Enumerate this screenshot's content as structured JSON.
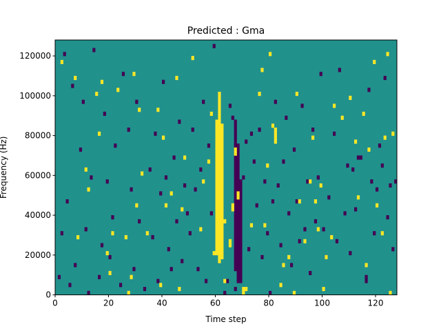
{
  "chart_data": {
    "type": "heatmap",
    "title": "Predicted : Gma",
    "xlabel": "Time step",
    "ylabel": "Frequency (Hz)",
    "xlim": [
      0,
      128
    ],
    "ylim": [
      0,
      128000
    ],
    "x_ticks": [
      0,
      20,
      40,
      60,
      80,
      100,
      120
    ],
    "y_ticks": [
      0,
      20000,
      40000,
      60000,
      80000,
      100000,
      120000
    ],
    "x_tick_labels": [
      "0",
      "20",
      "40",
      "60",
      "80",
      "100",
      "120"
    ],
    "y_tick_labels": [
      "0",
      "20000",
      "40000",
      "60000",
      "80000",
      "100000",
      "120000"
    ],
    "n_columns": 128,
    "n_rows": 64,
    "colormap": {
      "low": "#440154",
      "mid": "#21918c",
      "high": "#fde725"
    },
    "background_value": 0,
    "high_cells": [
      [
        2,
        58
      ],
      [
        7,
        54
      ],
      [
        8,
        14
      ],
      [
        11,
        31
      ],
      [
        12,
        26
      ],
      [
        15,
        50
      ],
      [
        16,
        40
      ],
      [
        17,
        53
      ],
      [
        19,
        10
      ],
      [
        20,
        5
      ],
      [
        21,
        15
      ],
      [
        23,
        51
      ],
      [
        26,
        14
      ],
      [
        27,
        0
      ],
      [
        28,
        4
      ],
      [
        29,
        55
      ],
      [
        30,
        22
      ],
      [
        31,
        46
      ],
      [
        32,
        30
      ],
      [
        34,
        15
      ],
      [
        38,
        46
      ],
      [
        39,
        2
      ],
      [
        40,
        39
      ],
      [
        41,
        22
      ],
      [
        43,
        25
      ],
      [
        45,
        54
      ],
      [
        46,
        1
      ],
      [
        47,
        21
      ],
      [
        48,
        34
      ],
      [
        51,
        59
      ],
      [
        54,
        16
      ],
      [
        55,
        28
      ],
      [
        57,
        33
      ],
      [
        58,
        45
      ],
      [
        59,
        10
      ],
      [
        60,
        10
      ],
      [
        60,
        11
      ],
      [
        60,
        12
      ],
      [
        60,
        13
      ],
      [
        60,
        14
      ],
      [
        60,
        15
      ],
      [
        60,
        16
      ],
      [
        60,
        17
      ],
      [
        60,
        18
      ],
      [
        60,
        19
      ],
      [
        60,
        20
      ],
      [
        60,
        21
      ],
      [
        60,
        22
      ],
      [
        60,
        23
      ],
      [
        60,
        24
      ],
      [
        60,
        25
      ],
      [
        60,
        26
      ],
      [
        60,
        27
      ],
      [
        60,
        28
      ],
      [
        60,
        29
      ],
      [
        60,
        30
      ],
      [
        60,
        31
      ],
      [
        60,
        32
      ],
      [
        60,
        33
      ],
      [
        60,
        34
      ],
      [
        60,
        35
      ],
      [
        60,
        36
      ],
      [
        60,
        37
      ],
      [
        60,
        38
      ],
      [
        60,
        39
      ],
      [
        60,
        40
      ],
      [
        60,
        41
      ],
      [
        60,
        42
      ],
      [
        60,
        43
      ],
      [
        61,
        8
      ],
      [
        61,
        9
      ],
      [
        61,
        10
      ],
      [
        61,
        11
      ],
      [
        61,
        12
      ],
      [
        61,
        13
      ],
      [
        61,
        14
      ],
      [
        61,
        15
      ],
      [
        61,
        16
      ],
      [
        61,
        17
      ],
      [
        61,
        18
      ],
      [
        61,
        19
      ],
      [
        61,
        20
      ],
      [
        61,
        21
      ],
      [
        61,
        22
      ],
      [
        61,
        23
      ],
      [
        61,
        24
      ],
      [
        61,
        25
      ],
      [
        61,
        26
      ],
      [
        61,
        27
      ],
      [
        61,
        28
      ],
      [
        61,
        29
      ],
      [
        61,
        30
      ],
      [
        61,
        31
      ],
      [
        61,
        32
      ],
      [
        61,
        33
      ],
      [
        61,
        34
      ],
      [
        61,
        35
      ],
      [
        61,
        36
      ],
      [
        61,
        37
      ],
      [
        61,
        38
      ],
      [
        61,
        39
      ],
      [
        61,
        40
      ],
      [
        61,
        41
      ],
      [
        61,
        42
      ],
      [
        61,
        43
      ],
      [
        61,
        44
      ],
      [
        61,
        45
      ],
      [
        61,
        46
      ],
      [
        61,
        47
      ],
      [
        61,
        48
      ],
      [
        61,
        49
      ],
      [
        61,
        50
      ],
      [
        62,
        9
      ],
      [
        62,
        10
      ],
      [
        62,
        11
      ],
      [
        62,
        12
      ],
      [
        62,
        13
      ],
      [
        62,
        14
      ],
      [
        62,
        15
      ],
      [
        62,
        16
      ],
      [
        62,
        17
      ],
      [
        62,
        18
      ],
      [
        62,
        19
      ],
      [
        62,
        20
      ],
      [
        62,
        21
      ],
      [
        62,
        22
      ],
      [
        62,
        23
      ],
      [
        62,
        24
      ],
      [
        62,
        25
      ],
      [
        62,
        26
      ],
      [
        62,
        27
      ],
      [
        62,
        28
      ],
      [
        62,
        29
      ],
      [
        62,
        30
      ],
      [
        62,
        31
      ],
      [
        62,
        32
      ],
      [
        62,
        33
      ],
      [
        62,
        34
      ],
      [
        62,
        35
      ],
      [
        62,
        36
      ],
      [
        62,
        37
      ],
      [
        62,
        38
      ],
      [
        62,
        39
      ],
      [
        62,
        40
      ],
      [
        62,
        41
      ],
      [
        62,
        42
      ],
      [
        63,
        3
      ],
      [
        63,
        18
      ],
      [
        65,
        12
      ],
      [
        65,
        13
      ],
      [
        66,
        21
      ],
      [
        66,
        22
      ],
      [
        67,
        35
      ],
      [
        67,
        36
      ],
      [
        68,
        24
      ],
      [
        68,
        25
      ],
      [
        70,
        0
      ],
      [
        70,
        1
      ],
      [
        71,
        1
      ],
      [
        73,
        17
      ],
      [
        76,
        50
      ],
      [
        77,
        56
      ],
      [
        78,
        17
      ],
      [
        79,
        32
      ],
      [
        80,
        60
      ],
      [
        81,
        42
      ],
      [
        82,
        38
      ],
      [
        82,
        39
      ],
      [
        82,
        40
      ],
      [
        82,
        41
      ],
      [
        84,
        2
      ],
      [
        85,
        7
      ],
      [
        87,
        9
      ],
      [
        89,
        0
      ],
      [
        90,
        50
      ],
      [
        91,
        23
      ],
      [
        93,
        13
      ],
      [
        95,
        28
      ],
      [
        96,
        39
      ],
      [
        97,
        23
      ],
      [
        98,
        16
      ],
      [
        99,
        27
      ],
      [
        100,
        1
      ],
      [
        101,
        9
      ],
      [
        103,
        14
      ],
      [
        104,
        47
      ],
      [
        107,
        44
      ],
      [
        110,
        49
      ],
      [
        112,
        38
      ],
      [
        113,
        24
      ],
      [
        115,
        45
      ],
      [
        116,
        7
      ],
      [
        117,
        36
      ],
      [
        119,
        58
      ],
      [
        120,
        22
      ],
      [
        122,
        15
      ],
      [
        123,
        39
      ],
      [
        124,
        60
      ],
      [
        125,
        0
      ],
      [
        126,
        40
      ]
    ],
    "low_cells": [
      [
        1,
        4
      ],
      [
        2,
        15
      ],
      [
        3,
        60
      ],
      [
        4,
        23
      ],
      [
        5,
        2
      ],
      [
        6,
        52
      ],
      [
        7,
        7
      ],
      [
        9,
        36
      ],
      [
        10,
        48
      ],
      [
        11,
        16
      ],
      [
        12,
        0
      ],
      [
        13,
        29
      ],
      [
        14,
        61
      ],
      [
        16,
        4
      ],
      [
        17,
        12
      ],
      [
        18,
        45
      ],
      [
        19,
        28
      ],
      [
        20,
        9
      ],
      [
        21,
        19
      ],
      [
        22,
        37
      ],
      [
        24,
        2
      ],
      [
        25,
        55
      ],
      [
        27,
        41
      ],
      [
        28,
        26
      ],
      [
        29,
        6
      ],
      [
        30,
        48
      ],
      [
        31,
        18
      ],
      [
        33,
        1
      ],
      [
        35,
        31
      ],
      [
        36,
        14
      ],
      [
        37,
        40
      ],
      [
        38,
        3
      ],
      [
        39,
        25
      ],
      [
        40,
        53
      ],
      [
        41,
        29
      ],
      [
        42,
        11
      ],
      [
        43,
        6
      ],
      [
        44,
        34
      ],
      [
        45,
        18
      ],
      [
        46,
        43
      ],
      [
        47,
        8
      ],
      [
        48,
        27
      ],
      [
        49,
        20
      ],
      [
        50,
        15
      ],
      [
        51,
        41
      ],
      [
        52,
        26
      ],
      [
        53,
        6
      ],
      [
        54,
        31
      ],
      [
        55,
        48
      ],
      [
        56,
        3
      ],
      [
        57,
        37
      ],
      [
        58,
        20
      ],
      [
        59,
        62
      ],
      [
        63,
        0
      ],
      [
        64,
        3
      ],
      [
        65,
        47
      ],
      [
        66,
        44
      ],
      [
        67,
        1
      ],
      [
        67,
        6
      ],
      [
        67,
        7
      ],
      [
        67,
        8
      ],
      [
        67,
        9
      ],
      [
        67,
        10
      ],
      [
        67,
        11
      ],
      [
        67,
        12
      ],
      [
        67,
        13
      ],
      [
        67,
        14
      ],
      [
        67,
        15
      ],
      [
        67,
        16
      ],
      [
        67,
        17
      ],
      [
        67,
        18
      ],
      [
        67,
        19
      ],
      [
        67,
        20
      ],
      [
        67,
        21
      ],
      [
        67,
        22
      ],
      [
        67,
        23
      ],
      [
        67,
        24
      ],
      [
        67,
        25
      ],
      [
        67,
        26
      ],
      [
        67,
        27
      ],
      [
        67,
        28
      ],
      [
        67,
        29
      ],
      [
        67,
        30
      ],
      [
        67,
        31
      ],
      [
        67,
        32
      ],
      [
        67,
        33
      ],
      [
        67,
        34
      ],
      [
        67,
        35
      ],
      [
        67,
        36
      ],
      [
        67,
        37
      ],
      [
        67,
        38
      ],
      [
        67,
        39
      ],
      [
        67,
        40
      ],
      [
        67,
        41
      ],
      [
        67,
        42
      ],
      [
        67,
        43
      ],
      [
        68,
        3
      ],
      [
        68,
        4
      ],
      [
        68,
        5
      ],
      [
        68,
        6
      ],
      [
        68,
        7
      ],
      [
        68,
        8
      ],
      [
        68,
        9
      ],
      [
        68,
        10
      ],
      [
        68,
        11
      ],
      [
        68,
        12
      ],
      [
        68,
        13
      ],
      [
        68,
        14
      ],
      [
        68,
        15
      ],
      [
        68,
        16
      ],
      [
        68,
        17
      ],
      [
        68,
        18
      ],
      [
        68,
        19
      ],
      [
        68,
        20
      ],
      [
        68,
        21
      ],
      [
        68,
        22
      ],
      [
        68,
        23
      ],
      [
        68,
        24
      ],
      [
        68,
        25
      ],
      [
        68,
        26
      ],
      [
        68,
        27
      ],
      [
        68,
        28
      ],
      [
        68,
        29
      ],
      [
        68,
        30
      ],
      [
        68,
        31
      ],
      [
        68,
        32
      ],
      [
        68,
        33
      ],
      [
        68,
        34
      ],
      [
        68,
        35
      ],
      [
        68,
        36
      ],
      [
        68,
        37
      ],
      [
        69,
        3
      ],
      [
        69,
        4
      ],
      [
        69,
        5
      ],
      [
        69,
        6
      ],
      [
        69,
        7
      ],
      [
        69,
        8
      ],
      [
        69,
        9
      ],
      [
        69,
        10
      ],
      [
        69,
        11
      ],
      [
        69,
        12
      ],
      [
        69,
        13
      ],
      [
        69,
        14
      ],
      [
        69,
        15
      ],
      [
        69,
        16
      ],
      [
        69,
        17
      ],
      [
        69,
        18
      ],
      [
        69,
        19
      ],
      [
        69,
        20
      ],
      [
        69,
        21
      ],
      [
        69,
        22
      ],
      [
        69,
        23
      ],
      [
        69,
        24
      ],
      [
        69,
        25
      ],
      [
        69,
        26
      ],
      [
        69,
        27
      ],
      [
        69,
        28
      ],
      [
        70,
        29
      ],
      [
        71,
        38
      ],
      [
        72,
        11
      ],
      [
        73,
        40
      ],
      [
        74,
        33
      ],
      [
        75,
        22
      ],
      [
        76,
        41
      ],
      [
        77,
        9
      ],
      [
        78,
        28
      ],
      [
        79,
        15
      ],
      [
        80,
        0
      ],
      [
        81,
        23
      ],
      [
        82,
        48
      ],
      [
        83,
        27
      ],
      [
        84,
        12
      ],
      [
        85,
        33
      ],
      [
        86,
        44
      ],
      [
        87,
        20
      ],
      [
        88,
        7
      ],
      [
        89,
        36
      ],
      [
        90,
        23
      ],
      [
        91,
        13
      ],
      [
        92,
        47
      ],
      [
        93,
        16
      ],
      [
        94,
        28
      ],
      [
        95,
        5
      ],
      [
        96,
        41
      ],
      [
        97,
        18
      ],
      [
        98,
        29
      ],
      [
        99,
        55
      ],
      [
        100,
        16
      ],
      [
        101,
        9
      ],
      [
        102,
        24
      ],
      [
        104,
        40
      ],
      [
        105,
        13
      ],
      [
        106,
        56
      ],
      [
        108,
        20
      ],
      [
        109,
        32
      ],
      [
        110,
        10
      ],
      [
        111,
        31
      ],
      [
        112,
        21
      ],
      [
        113,
        34
      ],
      [
        114,
        34
      ],
      [
        116,
        3
      ],
      [
        116,
        4
      ],
      [
        117,
        51
      ],
      [
        118,
        28
      ],
      [
        119,
        15
      ],
      [
        120,
        26
      ],
      [
        121,
        37
      ],
      [
        122,
        32
      ],
      [
        123,
        54
      ],
      [
        124,
        19
      ],
      [
        125,
        27
      ],
      [
        126,
        11
      ],
      [
        127,
        28
      ]
    ]
  }
}
